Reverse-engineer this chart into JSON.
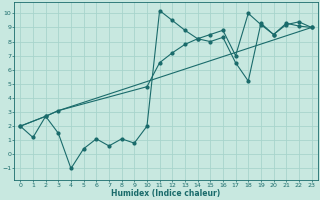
{
  "xlabel": "Humidex (Indice chaleur)",
  "bg_color": "#c8e8e0",
  "grid_color": "#a8d4cc",
  "line_color": "#1a6b6b",
  "xlim": [
    -0.5,
    23.5
  ],
  "ylim": [
    -1.8,
    10.8
  ],
  "xticks": [
    0,
    1,
    2,
    3,
    4,
    5,
    6,
    7,
    8,
    9,
    10,
    11,
    12,
    13,
    14,
    15,
    16,
    17,
    18,
    19,
    20,
    21,
    22,
    23
  ],
  "yticks": [
    -1,
    0,
    1,
    2,
    3,
    4,
    5,
    6,
    7,
    8,
    9,
    10
  ],
  "line1_x": [
    0,
    1,
    2,
    3,
    4,
    5,
    6,
    7,
    8,
    9,
    10,
    11,
    12,
    13,
    14,
    15,
    16,
    17,
    18,
    19,
    20,
    21,
    22,
    23
  ],
  "line1_y": [
    2.0,
    1.2,
    2.7,
    1.5,
    -1.0,
    0.4,
    1.1,
    0.6,
    1.1,
    0.8,
    2.0,
    10.2,
    9.5,
    8.8,
    8.2,
    8.0,
    8.3,
    6.5,
    5.2,
    9.3,
    8.5,
    9.3,
    9.1,
    9.0
  ],
  "line2_x": [
    0,
    2,
    3,
    23
  ],
  "line2_y": [
    2.0,
    2.7,
    3.1,
    9.0
  ],
  "line3_x": [
    0,
    2,
    3,
    10,
    11,
    12,
    13,
    14,
    15,
    16,
    17,
    18,
    19,
    20,
    21,
    22,
    23
  ],
  "line3_y": [
    2.0,
    2.7,
    3.1,
    4.8,
    6.5,
    7.2,
    7.8,
    8.2,
    8.5,
    8.8,
    7.0,
    10.0,
    9.2,
    8.5,
    9.2,
    9.4,
    9.0
  ]
}
